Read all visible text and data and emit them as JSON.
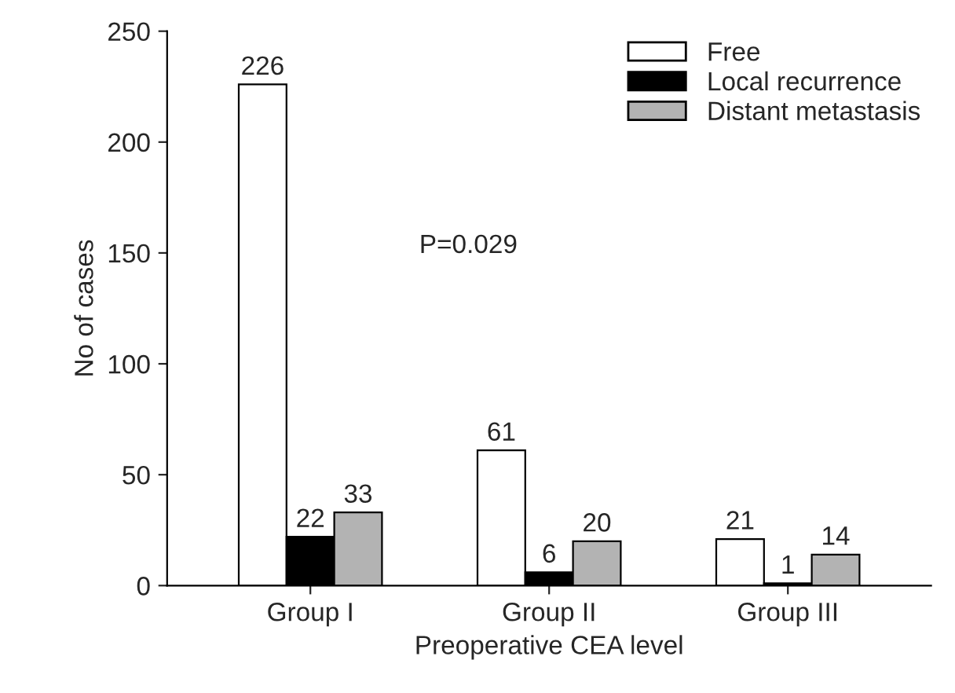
{
  "chart_data": {
    "type": "bar",
    "xlabel": "Preoperative CEA level",
    "ylabel": "No of cases",
    "categories": [
      "Group I",
      "Group II",
      "Group III"
    ],
    "series": [
      {
        "name": "Free",
        "color": "#ffffff",
        "values": [
          226,
          61,
          21
        ]
      },
      {
        "name": "Local recurrence",
        "color": "#000000",
        "values": [
          22,
          6,
          1
        ]
      },
      {
        "name": "Distant metastasis",
        "color": "#b3b3b3",
        "values": [
          33,
          20,
          14
        ]
      }
    ],
    "ylim": [
      0,
      250
    ],
    "yticks": [
      0,
      50,
      100,
      150,
      200,
      250
    ],
    "grid": false,
    "legend": "top right",
    "data_labels": true,
    "annotations": [
      "P=0.029"
    ]
  }
}
